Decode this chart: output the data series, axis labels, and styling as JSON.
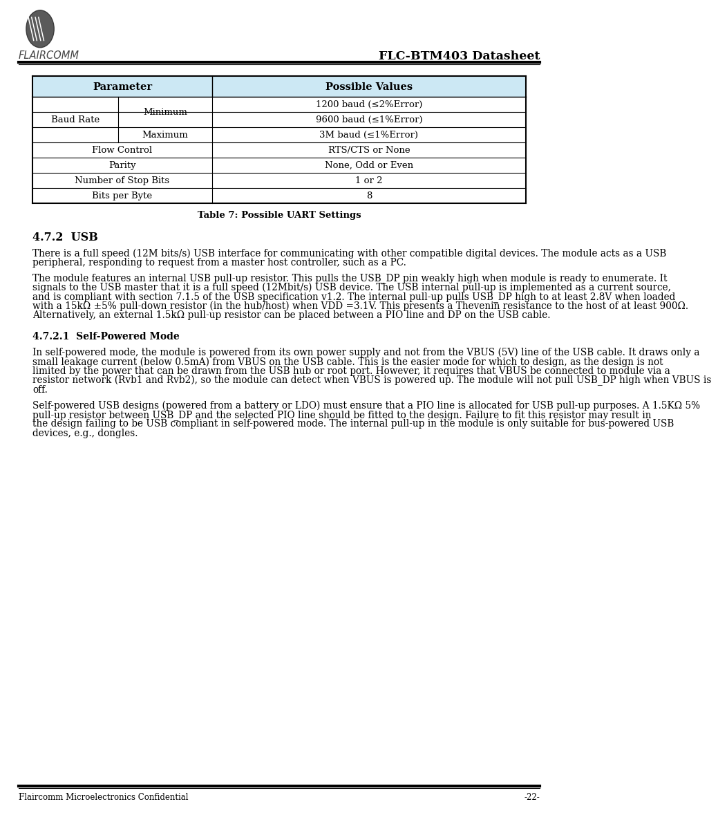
{
  "page_width": 10.17,
  "page_height": 15.02,
  "bg_color": "#ffffff",
  "header_title": "FLC-BTM403 Datasheet",
  "footer_left": "Flaircomm Microelectronics Confidential",
  "footer_right": "-22-",
  "logo_text": "FLAIRCOMM",
  "table_caption": "Table 7: Possible UART Settings",
  "section_title": "4.7.2  USB",
  "subsection_title": "4.7.2.1  Self-Powered Mode",
  "table_header_bg": "#cce8f4",
  "header_col1": "Parameter",
  "header_col2": "Possible Values",
  "para1": "There is a full speed (12M bits/s) USB interface for communicating with other compatible digital devices. The module acts as a USB peripheral, responding to request from a master host controller, such as a PC.",
  "para2": "The module features an internal USB pull-up resistor. This pulls the USB_DP pin weakly high when module is ready to enumerate. It signals to the USB master that it is a full speed (12Mbit/s) USB device. The USB internal pull-up is implemented as a current source, and is compliant with section 7.1.5 of the USB specification v1.2. The internal pull-up pulls USB_DP high to at least 2.8V when loaded with a 15kΩ ±5% pull-down resistor (in the hub/host) when VDD =3.1V. This presents a Thevenin resistance to the host of at least 900Ω. Alternatively, an external 1.5kΩ pull-up resistor can be placed between a PIO line and DP on the USB cable.",
  "para3": "In self-powered mode, the module is powered from its own power supply and not from the VBUS (5V) line of the USB cable. It draws only a small leakage current (below 0.5mA) from VBUS on the USB cable. This is the easier mode for which to design, as the design is not limited by the power that can be drawn from the USB hub or root port. However, it requires that VBUS be connected to module via a resistor network (Rvb1 and Rvb2), so the module can detect when VBUS is powered up. The module will not pull USB_DP high when VBUS is off.",
  "para4": "Self-powered USB designs (powered from a battery or LDO) must ensure that a PIO line is allocated for USB pull-up purposes. A 1.5KΩ 5% pull-up resistor between USB_DP and the selected PIO line should be fitted to the design. Failure to fit this resistor may result in the design failing to be USB compliant in self-powered mode. The internal pull-up in the module is only suitable for bus-powered USB devices, e.g., dongles."
}
